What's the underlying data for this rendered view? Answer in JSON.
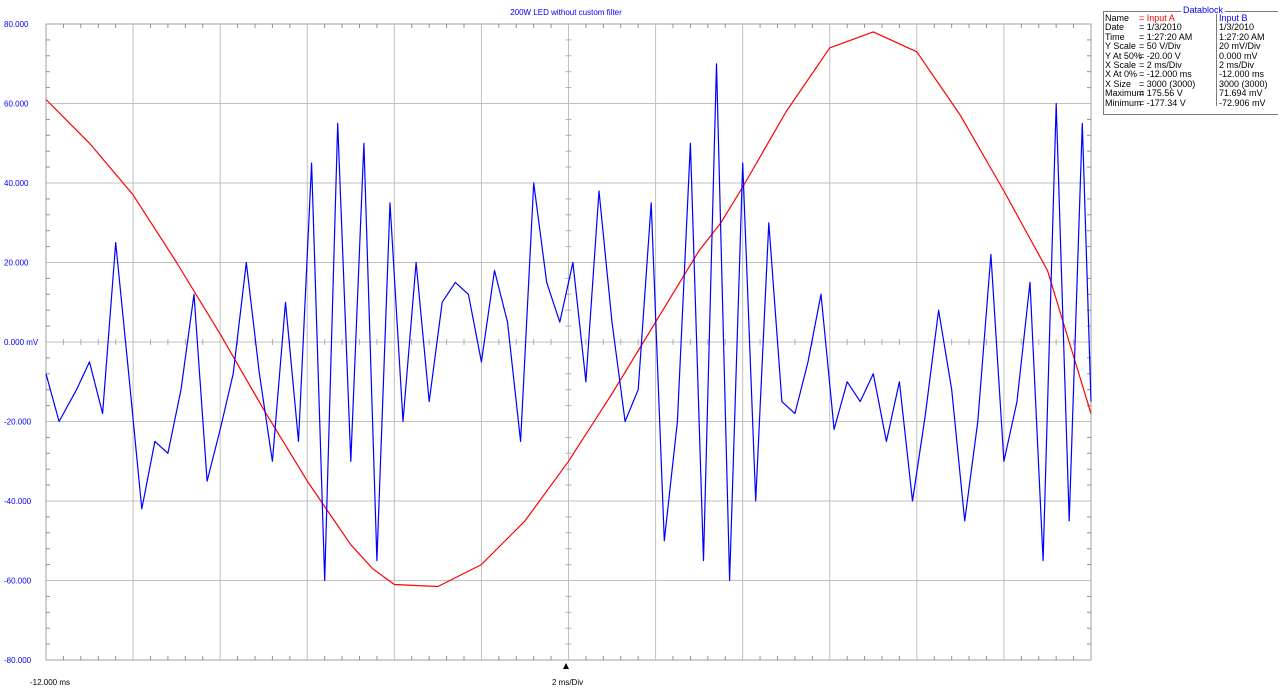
{
  "title": "200W LED without custom filter",
  "colors": {
    "input_a": "#ff0000",
    "input_b": "#0000ff",
    "grid": "#c0c0c0"
  },
  "x_axis": {
    "start_label": "-12.000 ms",
    "scale_label": "2 ms/Div"
  },
  "datablock": {
    "heading": "Datablock",
    "labels": [
      "Name",
      "Date",
      "Time",
      "Y Scale",
      "Y At 50%",
      "X Scale",
      "X At 0%",
      "X Size",
      "Maximum",
      "Minimum"
    ],
    "input_a": [
      "= Input A",
      "= 1/3/2010",
      "= 1:27:20 AM",
      "=    50    V/Div",
      "=  -20.00  V",
      "=     2     ms/Div",
      "=   -12.000 ms",
      "= 3000 (3000)",
      "= 175.56  V",
      "= -177.34  V"
    ],
    "input_b": [
      "Input B",
      "1/3/2010",
      "1:27:20 AM",
      "  20    mV/Div",
      "  0.000 mV",
      "  2    ms/Div",
      "-12.000 ms",
      "3000 (3000)",
      "  71.694 mV",
      " -72.906 mV"
    ]
  },
  "chart_data": {
    "type": "line",
    "title": "200W LED without custom filter",
    "x_unit": "ms",
    "xlim": [
      -12,
      12
    ],
    "ylim": [
      -80,
      80
    ],
    "y_unit": "mV",
    "yticks": [
      {
        "value": 80,
        "label": "80.000"
      },
      {
        "value": 60,
        "label": "60.000"
      },
      {
        "value": 40,
        "label": "40.000"
      },
      {
        "value": 20,
        "label": "20.000"
      },
      {
        "value": 0,
        "label": "0.000 mV"
      },
      {
        "value": -20,
        "label": "-20.000"
      },
      {
        "value": -40,
        "label": "-40.000"
      },
      {
        "value": -60,
        "label": "-60.000"
      },
      {
        "value": -80,
        "label": "-80.000"
      }
    ],
    "grid": true,
    "series": [
      {
        "name": "Input A",
        "color": "#ff0000",
        "x": [
          -12.0,
          -11.0,
          -10.0,
          -9.0,
          -8.0,
          -7.0,
          -6.0,
          -5.5,
          -5.0,
          -4.5,
          -4.0,
          -3.0,
          -2.0,
          -1.0,
          0.0,
          1.0,
          2.0,
          3.0,
          3.5,
          4.0,
          5.0,
          6.0,
          7.0,
          8.0,
          9.0,
          10.0,
          11.0,
          11.5,
          12.0
        ],
        "values": [
          61,
          50,
          37,
          20,
          2,
          -17,
          -35,
          -43,
          -51,
          -57,
          -61,
          -61.5,
          -56,
          -45,
          -30,
          -13,
          5,
          23,
          30,
          39,
          58,
          74,
          78,
          73,
          57,
          38,
          18,
          0,
          -18
        ]
      },
      {
        "name": "Input B",
        "color": "#0000ff",
        "x": [
          -12.0,
          -11.7,
          -11.3,
          -11.0,
          -10.7,
          -10.4,
          -10.1,
          -9.8,
          -9.5,
          -9.2,
          -8.9,
          -8.6,
          -8.3,
          -8.0,
          -7.7,
          -7.4,
          -7.1,
          -6.8,
          -6.5,
          -6.2,
          -5.9,
          -5.6,
          -5.3,
          -5.0,
          -4.7,
          -4.4,
          -4.1,
          -3.8,
          -3.5,
          -3.2,
          -2.9,
          -2.6,
          -2.3,
          -2.0,
          -1.7,
          -1.4,
          -1.1,
          -0.8,
          -0.5,
          -0.2,
          0.1,
          0.4,
          0.7,
          1.0,
          1.3,
          1.6,
          1.9,
          2.2,
          2.5,
          2.8,
          3.1,
          3.4,
          3.7,
          4.0,
          4.3,
          4.6,
          4.9,
          5.2,
          5.5,
          5.8,
          6.1,
          6.4,
          6.7,
          7.0,
          7.3,
          7.6,
          7.9,
          8.2,
          8.5,
          8.8,
          9.1,
          9.4,
          9.7,
          10.0,
          10.3,
          10.6,
          10.9,
          11.2,
          11.5,
          11.8,
          12.0
        ],
        "values": [
          -8,
          -20,
          -12,
          -5,
          -18,
          25,
          -8,
          -42,
          -25,
          -28,
          -12,
          12,
          -35,
          -22,
          -8,
          20,
          -8,
          -30,
          10,
          -25,
          45,
          -60,
          55,
          -30,
          50,
          -55,
          35,
          -20,
          20,
          -15,
          10,
          15,
          12,
          -5,
          18,
          5,
          -25,
          40,
          15,
          5,
          20,
          -10,
          38,
          5,
          -20,
          -12,
          35,
          -50,
          -20,
          50,
          -55,
          70,
          -60,
          45,
          -40,
          30,
          -15,
          -18,
          -5,
          12,
          -22,
          -10,
          -15,
          -8,
          -25,
          -10,
          -40,
          -18,
          8,
          -12,
          -45,
          -20,
          22,
          -30,
          -15,
          15,
          -55,
          60,
          -45,
          55,
          -15
        ]
      }
    ]
  }
}
